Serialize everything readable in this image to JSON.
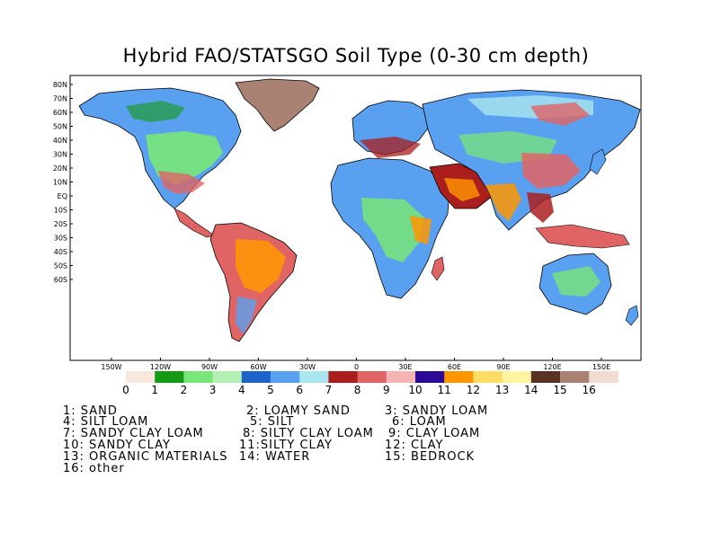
{
  "title": "Hybrid FAO/STATSGO Soil Type (0-30 cm depth)",
  "lat_ticks": [
    "80N",
    "70N",
    "60N",
    "50N",
    "40N",
    "30N",
    "20N",
    "10N",
    "EQ",
    "10S",
    "20S",
    "30S",
    "40S",
    "50S",
    "60S"
  ],
  "lon_ticks": [
    "150W",
    "120W",
    "90W",
    "60W",
    "30W",
    "0",
    "30E",
    "60E",
    "90E",
    "120E",
    "150E"
  ],
  "colorbar": {
    "labels": [
      "0",
      "1",
      "2",
      "3",
      "4",
      "5",
      "6",
      "7",
      "8",
      "9",
      "10",
      "11",
      "12",
      "13",
      "14",
      "15",
      "16"
    ],
    "colors": [
      "#f7e7dc",
      "#149a14",
      "#78e678",
      "#b4f0b4",
      "#1e64c8",
      "#5aa0f0",
      "#aae6f0",
      "#aa1e1e",
      "#e06464",
      "#f5b4b4",
      "#2d0a96",
      "#ff9600",
      "#ffdc64",
      "#fff5a0",
      "#5a3223",
      "#aa8273",
      "#f0dcd2"
    ]
  },
  "legend": [
    {
      "num": "1",
      "name": "SAND"
    },
    {
      "num": "2",
      "name": "LOAMY SAND"
    },
    {
      "num": "3",
      "name": "SANDY LOAM"
    },
    {
      "num": "4",
      "name": "SILT LOAM"
    },
    {
      "num": "5",
      "name": "SILT"
    },
    {
      "num": "6",
      "name": "LOAM"
    },
    {
      "num": "7",
      "name": "SANDY CLAY LOAM"
    },
    {
      "num": "8",
      "name": "SILTY CLAY LOAM"
    },
    {
      "num": "9",
      "name": "CLAY LOAM"
    },
    {
      "num": "10",
      "name": "SANDY CLAY"
    },
    {
      "num": "11",
      "name": "SILTY CLAY"
    },
    {
      "num": "12",
      "name": "CLAY"
    },
    {
      "num": "13",
      "name": "ORGANIC MATERIALS"
    },
    {
      "num": "14",
      "name": "WATER"
    },
    {
      "num": "15",
      "name": "BEDROCK"
    },
    {
      "num": "16",
      "name": "other"
    }
  ],
  "legend_text": {
    "l1": "1: SAND",
    "l2": "2: LOAMY SAND",
    "l3": "3: SANDY LOAM",
    "l4": "4: SILT LOAM",
    "l5": "5: SILT",
    "l6": "6: LOAM",
    "l7": "7: SANDY CLAY LOAM",
    "l8": "8: SILTY CLAY LOAM",
    "l9": "9: CLAY LOAM",
    "l10": "10: SANDY CLAY",
    "l11": "11:SILTY CLAY",
    "l12": "12: CLAY",
    "l13": "13: ORGANIC MATERIALS",
    "l14": "14: WATER",
    "l15": "15: BEDROCK",
    "l16": "16: other"
  }
}
